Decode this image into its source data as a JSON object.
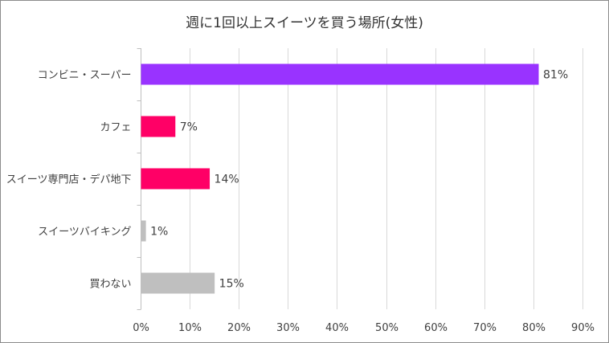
{
  "chart_data": {
    "type": "bar",
    "orientation": "horizontal",
    "title": "週に1回以上スイーツを買う場所(女性)",
    "categories": [
      "コンビニ・スーパー",
      "カフェ",
      "スイーツ専門店・デパ地下",
      "スイーツバイキング",
      "買わない"
    ],
    "values": [
      81,
      7,
      14,
      1,
      15
    ],
    "data_labels": [
      "81%",
      "7%",
      "14%",
      "1%",
      "15%"
    ],
    "bar_colors": [
      "#9933ff",
      "#ff0066",
      "#ff0066",
      "#bfbfbf",
      "#bfbfbf"
    ],
    "xlim": [
      0,
      90
    ],
    "xticks": [
      0,
      10,
      20,
      30,
      40,
      50,
      60,
      70,
      80,
      90
    ],
    "xtick_labels": [
      "0%",
      "10%",
      "20%",
      "30%",
      "40%",
      "50%",
      "60%",
      "70%",
      "80%",
      "90%"
    ],
    "grid": true,
    "legend": "none",
    "xlabel": "",
    "ylabel": ""
  }
}
